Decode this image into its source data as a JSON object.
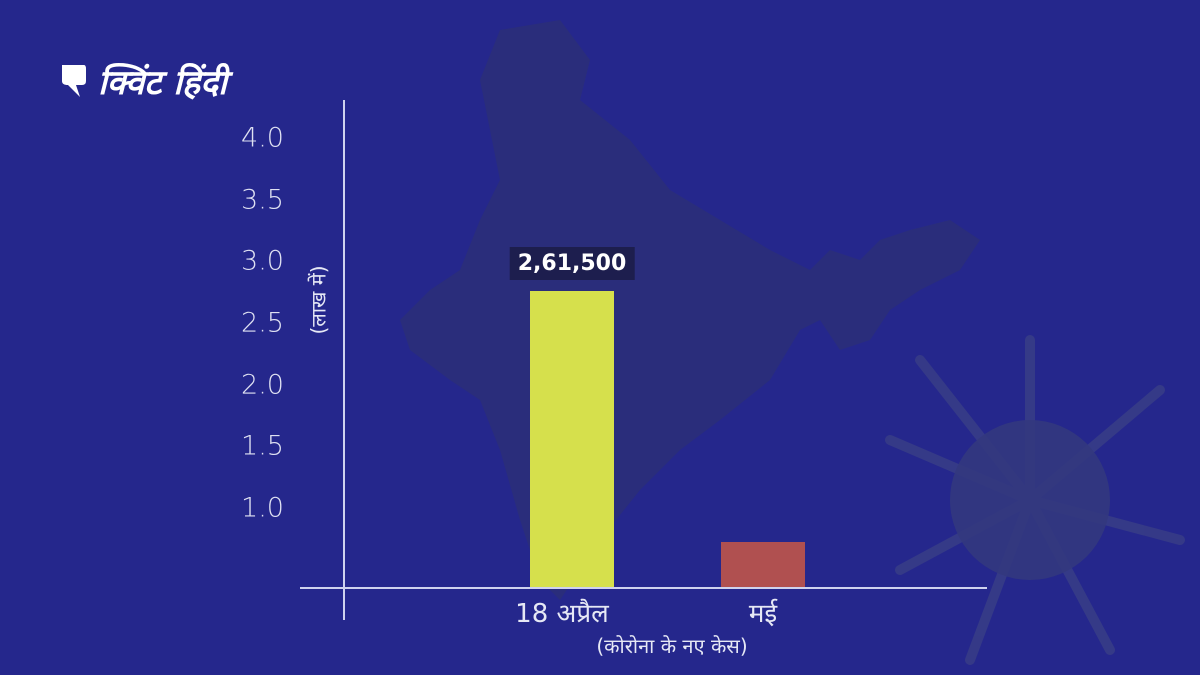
{
  "logo": {
    "text": "क्विंट हिंदी"
  },
  "colors": {
    "background": "#25278c",
    "bar_april": "#d6e04c",
    "bar_may": "#b05050",
    "label_box": "#1d1e4e"
  },
  "chart_data": {
    "type": "bar",
    "title": "",
    "ylabel": "(लाख में)",
    "xlabel": "(कोरोना के नए केस)",
    "yticks": [
      "1.0",
      "1.5",
      "2.0",
      "2.5",
      "3.0",
      "3.5",
      "4.0"
    ],
    "ylim": [
      0,
      4.0
    ],
    "grid": false,
    "categories": [
      "18 अप्रैल",
      "मई"
    ],
    "values": [
      2.615,
      0.4
    ],
    "data_labels": [
      "2,61,500",
      ""
    ]
  }
}
